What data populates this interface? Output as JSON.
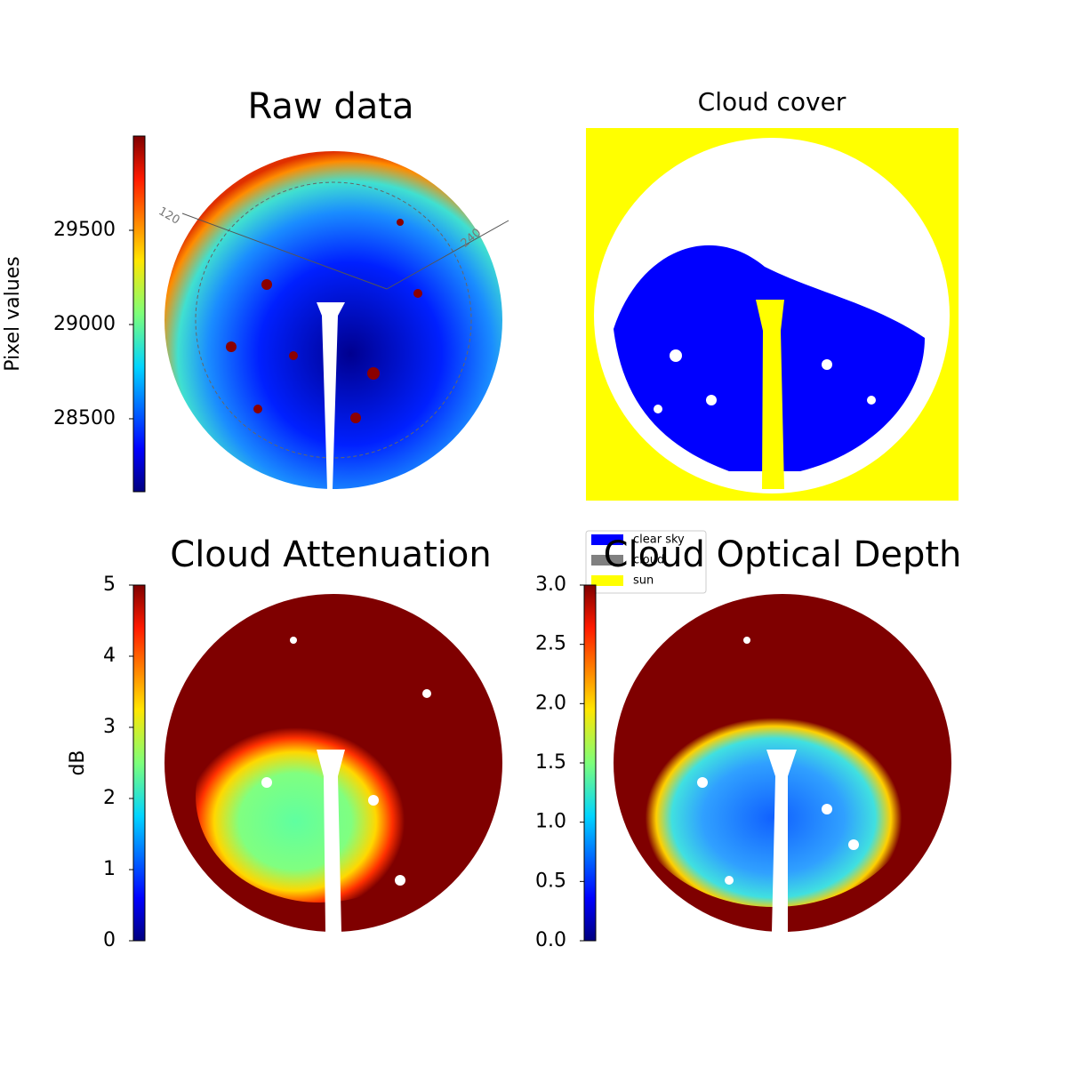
{
  "chart_data": [
    {
      "type": "image",
      "title": "Raw data",
      "colorbar_label": "Pixel values",
      "clim": [
        28113,
        30000
      ],
      "cticks": [
        28500,
        29000,
        29500
      ],
      "annotations": [
        "120",
        "240"
      ]
    },
    {
      "type": "image",
      "title": "Cloud cover",
      "legend": [
        {
          "name": "clear sky",
          "color": "#0000ff"
        },
        {
          "name": "cloud",
          "color": "#808080"
        },
        {
          "name": "sun",
          "color": "#ffff00"
        }
      ]
    },
    {
      "type": "image",
      "title": "Cloud Attenuation",
      "colorbar_label": "dB",
      "clim": [
        0,
        5
      ],
      "cticks": [
        0,
        1,
        2,
        3,
        4,
        5
      ]
    },
    {
      "type": "image",
      "title": "Cloud Optical Depth",
      "clim": [
        0,
        3
      ],
      "cticks": [
        {
          "value": 0,
          "label": "0.0"
        },
        {
          "value": 0.5,
          "label": "0.5"
        },
        {
          "value": 1,
          "label": "1.0"
        },
        {
          "value": 1.5,
          "label": "1.5"
        },
        {
          "value": 2,
          "label": "2.0"
        },
        {
          "value": 2.5,
          "label": "2.5"
        },
        {
          "value": 3,
          "label": "3.0"
        }
      ]
    }
  ]
}
